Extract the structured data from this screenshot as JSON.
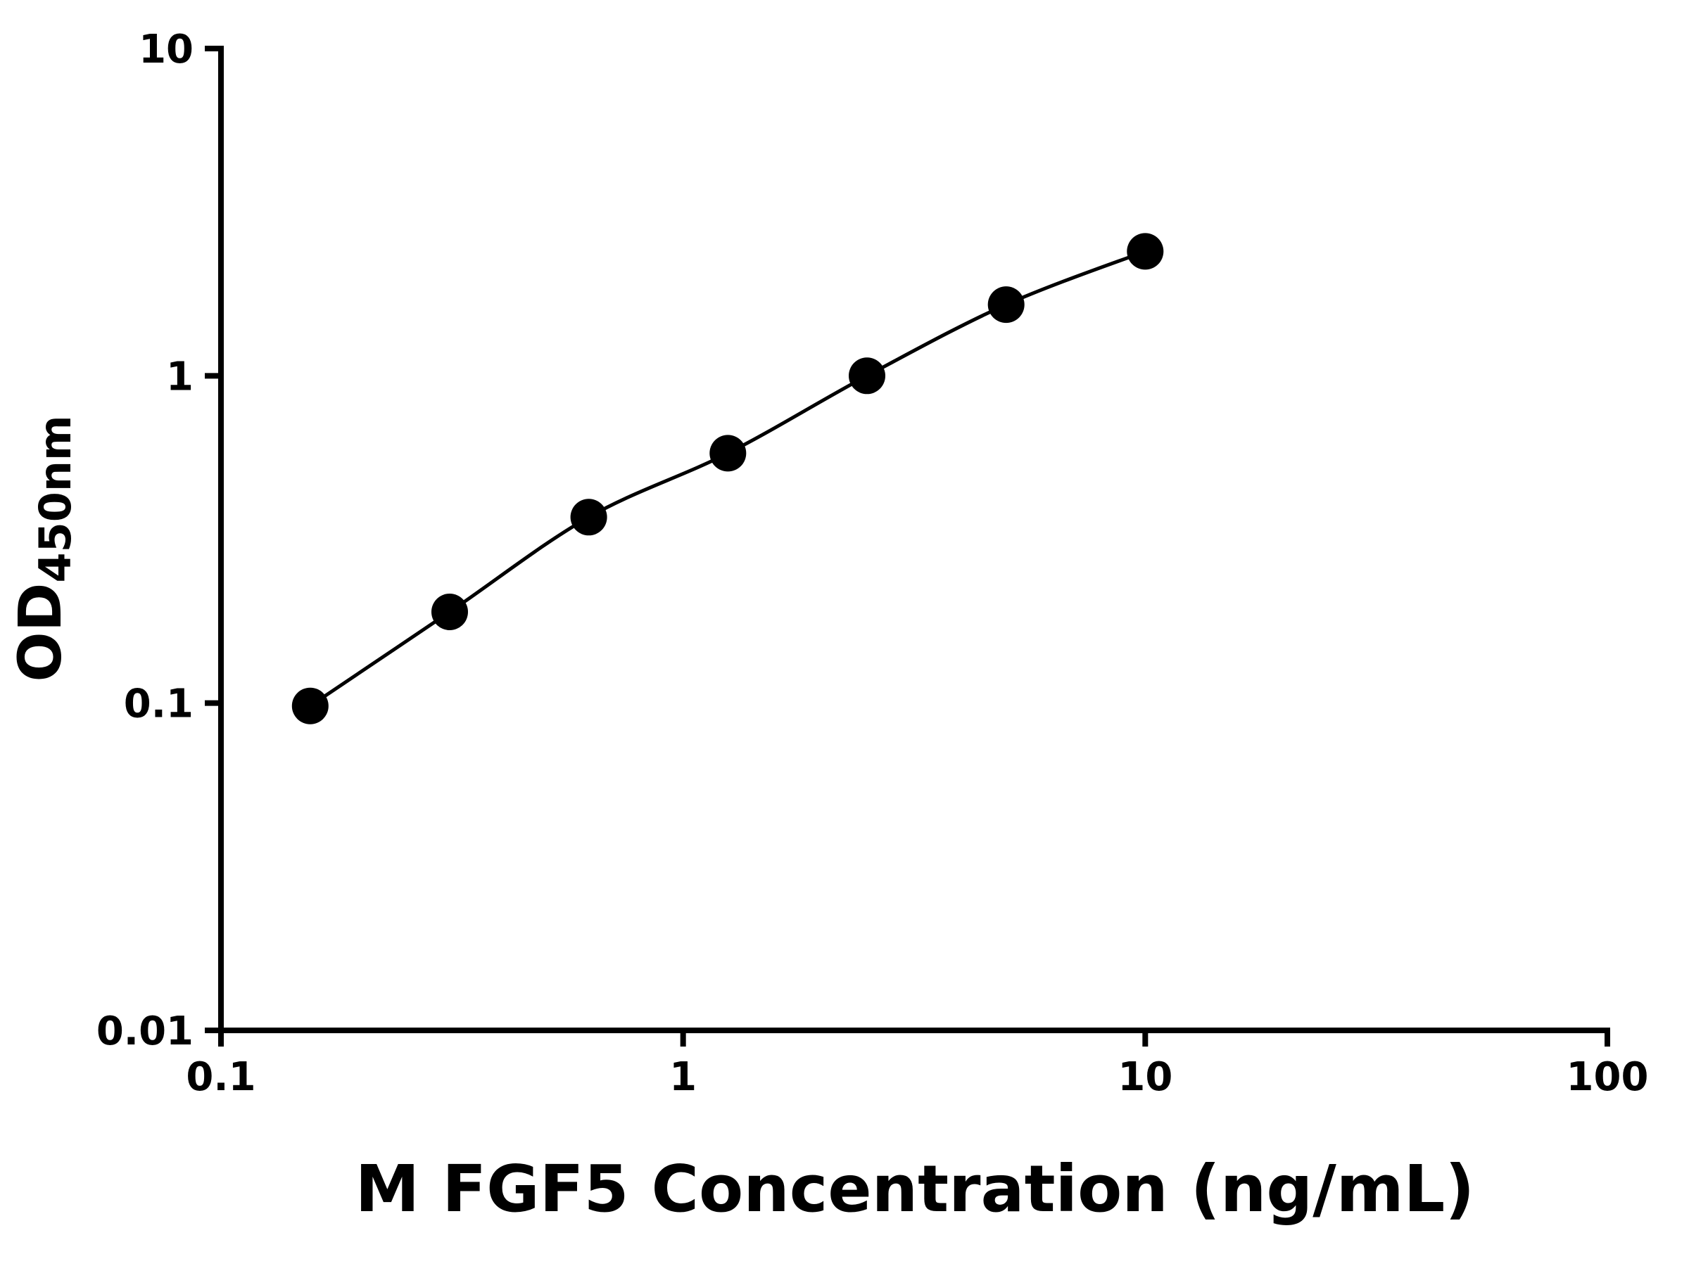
{
  "chart_data": {
    "type": "scatter",
    "title": "",
    "xlabel": "M FGF5 Concentration (ng/mL)",
    "ylabel_main": "OD",
    "ylabel_sub": "450nm",
    "x_scale": "log",
    "y_scale": "log",
    "xlim": [
      0.1,
      100
    ],
    "ylim": [
      0.01,
      10
    ],
    "x_ticks": [
      0.1,
      1,
      10,
      100
    ],
    "x_tick_labels": [
      "0.1",
      "1",
      "10",
      "100"
    ],
    "y_ticks": [
      0.01,
      0.1,
      1,
      10
    ],
    "y_tick_labels": [
      "0.01",
      "0.1",
      "1",
      "10"
    ],
    "grid": false,
    "legend": "none",
    "background": "#ffffff",
    "axis_color": "#000000",
    "line_color": "#000000",
    "marker_color": "#000000",
    "series": [
      {
        "x": [
          0.156,
          0.3125,
          0.625,
          1.25,
          2.5,
          5,
          10
        ],
        "y": [
          0.098,
          0.19,
          0.37,
          0.58,
          1.0,
          1.65,
          2.4
        ],
        "marker": "circle"
      }
    ]
  }
}
